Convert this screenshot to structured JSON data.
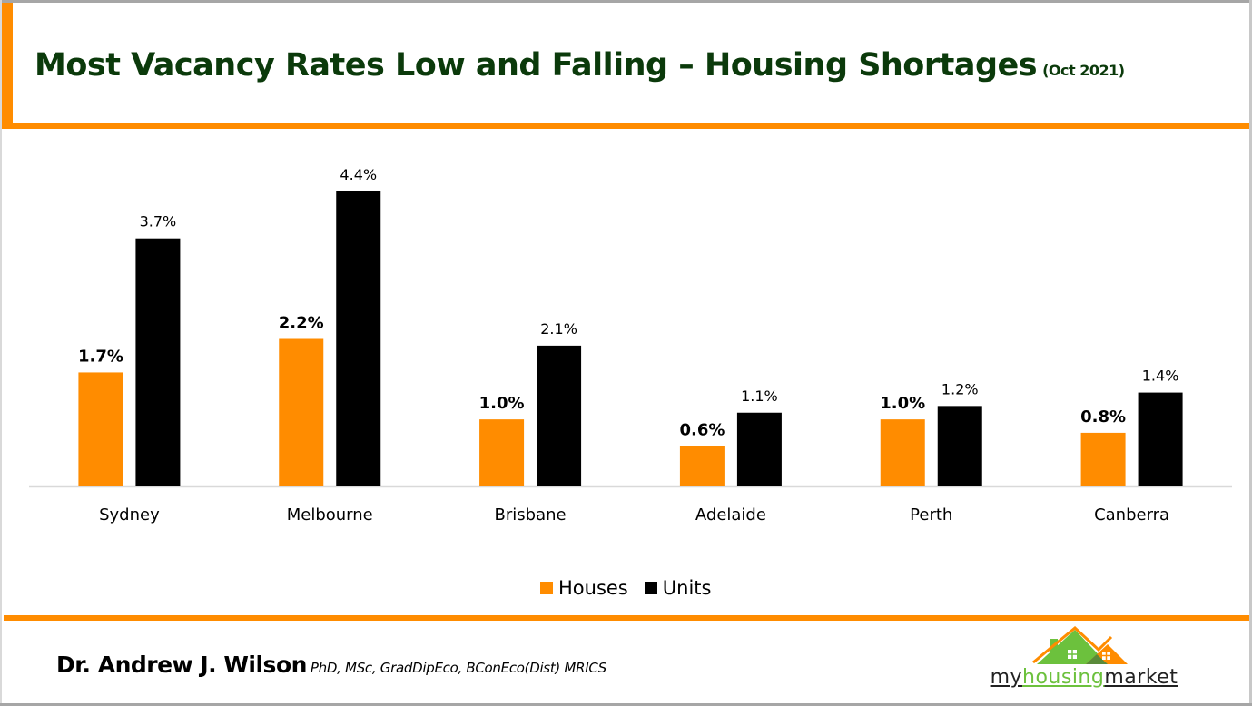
{
  "header": {
    "title": "Most Vacancy Rates Low and Falling – Housing Shortages",
    "subtitle": "(Oct 2021)"
  },
  "colors": {
    "accent": "#ff8c00",
    "title_green": "#0b3a0b",
    "houses": "#ff8c00",
    "units": "#000000",
    "axis": "#d9d9d9",
    "logo_green": "#6cc13d",
    "logo_orange": "#ff8c00"
  },
  "chart_data": {
    "type": "bar",
    "title": "Most Vacancy Rates Low and Falling – Housing Shortages (Oct 2021)",
    "xlabel": "",
    "ylabel": "",
    "categories": [
      "Sydney",
      "Melbourne",
      "Brisbane",
      "Adelaide",
      "Perth",
      "Canberra"
    ],
    "series": [
      {
        "name": "Houses",
        "values": [
          1.7,
          2.2,
          1.0,
          0.6,
          1.0,
          0.8
        ],
        "labels": [
          "1.7%",
          "2.2%",
          "1.0%",
          "0.6%",
          "1.0%",
          "0.8%"
        ],
        "label_bold": true
      },
      {
        "name": "Units",
        "values": [
          3.7,
          4.4,
          2.1,
          1.1,
          1.2,
          1.4
        ],
        "labels": [
          "3.7%",
          "4.4%",
          "2.1%",
          "1.1%",
          "1.2%",
          "1.4%"
        ],
        "label_bold": false
      }
    ],
    "ylim": [
      0,
      4.4
    ],
    "grid": false,
    "y_axis_visible": false,
    "legend": {
      "position": "bottom",
      "entries": [
        "Houses",
        "Units"
      ]
    }
  },
  "legend": {
    "houses_label": "Houses",
    "units_label": "Units"
  },
  "footer": {
    "author_name": "Dr. Andrew J. Wilson",
    "credentials": "PhD, MSc, GradDipEco, BConEco(Dist) MRICS",
    "logo": {
      "part1": "my",
      "part2": "housing",
      "part3": "market",
      "icon": "house-roof-logo-icon"
    }
  }
}
